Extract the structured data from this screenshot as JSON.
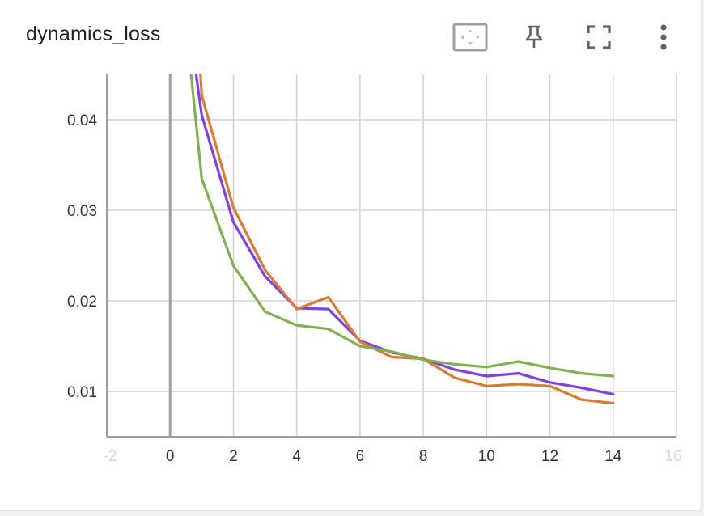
{
  "card": {
    "title": "dynamics_loss"
  },
  "toolbar": {
    "fit_domain_icon": "fit-to-domain-icon",
    "pin_icon": "pin-icon",
    "fullscreen_icon": "fullscreen-icon",
    "more_icon": "more-vert-icon"
  },
  "chart_data": {
    "type": "line",
    "title": "dynamics_loss",
    "xlabel": "",
    "ylabel": "",
    "xlim": [
      -2,
      16
    ],
    "ylim": [
      0.005,
      0.045
    ],
    "xticks": [
      -2,
      0,
      2,
      4,
      6,
      8,
      10,
      12,
      14,
      16
    ],
    "yticks": [
      0.01,
      0.02,
      0.03,
      0.04
    ],
    "ytick_labels": [
      "0.01",
      "0.02",
      "0.03",
      "0.04"
    ],
    "grid": true,
    "legend": "none",
    "series": [
      {
        "color": "#7e3ff2",
        "points": [
          [
            0.8,
            0.0455
          ],
          [
            1,
            0.0405
          ],
          [
            2,
            0.0287
          ],
          [
            3,
            0.0227
          ],
          [
            4,
            0.0192
          ],
          [
            5,
            0.0191
          ],
          [
            6,
            0.0156
          ],
          [
            7,
            0.0143
          ],
          [
            8,
            0.0136
          ],
          [
            9,
            0.0124
          ],
          [
            10,
            0.0117
          ],
          [
            11,
            0.012
          ],
          [
            12,
            0.011
          ],
          [
            13,
            0.0104
          ],
          [
            14,
            0.0097
          ]
        ]
      },
      {
        "color": "#e07a2b",
        "points": [
          [
            0.95,
            0.0455
          ],
          [
            1,
            0.0427
          ],
          [
            2,
            0.0303
          ],
          [
            3,
            0.0234
          ],
          [
            4,
            0.0191
          ],
          [
            5,
            0.0204
          ],
          [
            6,
            0.0155
          ],
          [
            7,
            0.0138
          ],
          [
            8,
            0.0136
          ],
          [
            9,
            0.0115
          ],
          [
            10,
            0.0106
          ],
          [
            11,
            0.0108
          ],
          [
            12,
            0.0106
          ],
          [
            13,
            0.0091
          ],
          [
            14,
            0.0087
          ]
        ]
      },
      {
        "color": "#7fb24c",
        "points": [
          [
            0.65,
            0.0455
          ],
          [
            1,
            0.0335
          ],
          [
            2,
            0.0239
          ],
          [
            3,
            0.0188
          ],
          [
            4,
            0.0173
          ],
          [
            5,
            0.0169
          ],
          [
            6,
            0.015
          ],
          [
            7,
            0.0144
          ],
          [
            8,
            0.0135
          ],
          [
            9,
            0.013
          ],
          [
            10,
            0.0127
          ],
          [
            11,
            0.0133
          ],
          [
            12,
            0.0126
          ],
          [
            13,
            0.012
          ],
          [
            14,
            0.0117
          ]
        ]
      }
    ]
  }
}
